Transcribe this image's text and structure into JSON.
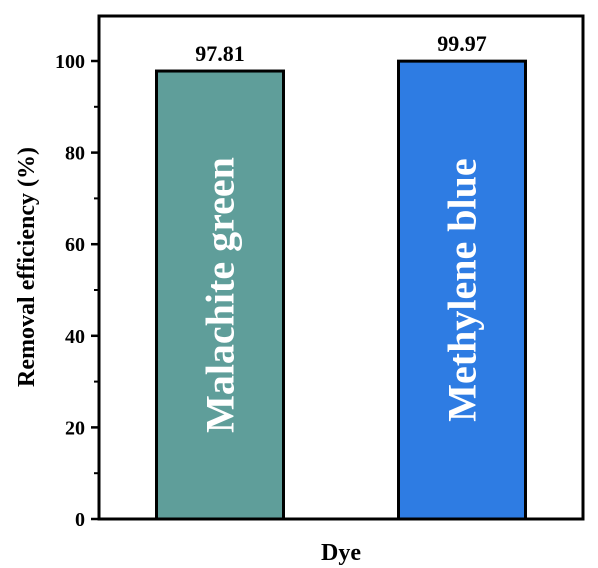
{
  "chart_data": {
    "type": "bar",
    "categories": [
      "Malachite green",
      "Methylene blue"
    ],
    "values": [
      97.81,
      99.97
    ],
    "data_labels": [
      "97.81",
      "99.97"
    ],
    "bar_colors": [
      "#5F9E9A",
      "#2E7CE3"
    ],
    "xlabel": "Dye",
    "ylabel": "Removal efficiency (%)",
    "ylim": [
      0,
      110
    ],
    "yticks": [
      0,
      20,
      40,
      60,
      80,
      100
    ],
    "ytick_labels": [
      "0",
      "20",
      "40",
      "60",
      "80",
      "100"
    ],
    "minor_ticks": true,
    "grid": false,
    "legend": "none"
  }
}
